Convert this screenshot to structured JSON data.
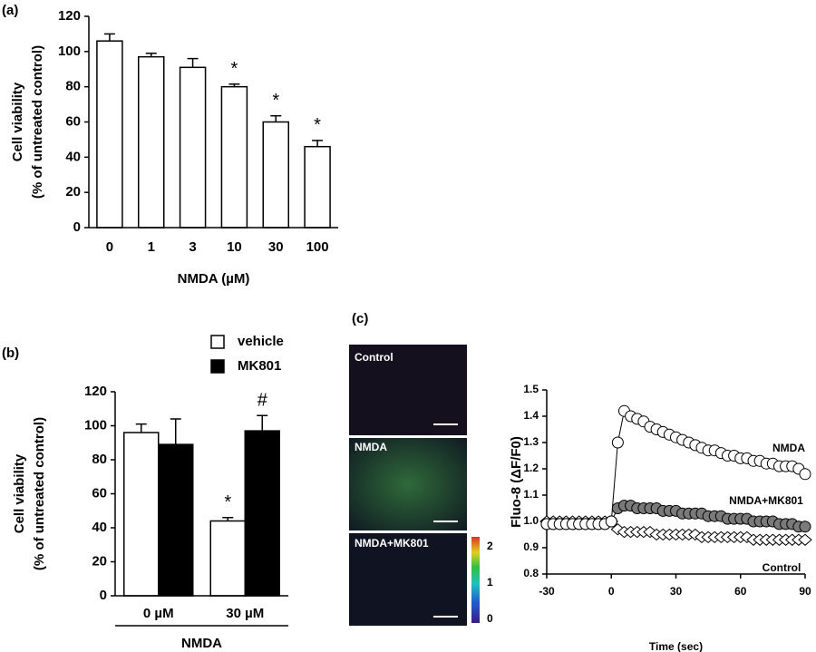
{
  "chart_data": [
    {
      "type": "bar",
      "panel_label": "(a)",
      "x_label": "NMDA (µM)",
      "y_label": [
        "Cell viability",
        "(% of untreated control)"
      ],
      "categories": [
        "0",
        "1",
        "3",
        "10",
        "30",
        "100"
      ],
      "values": [
        106,
        97,
        91,
        80,
        60,
        46
      ],
      "errors": [
        4,
        2,
        5,
        1.5,
        3.5,
        3.5
      ],
      "annotations": [
        null,
        null,
        null,
        "*",
        "*",
        "*"
      ],
      "color": "#ffffff",
      "ylim": [
        0,
        120
      ],
      "yticks": [
        0,
        20,
        40,
        60,
        80,
        100,
        120
      ]
    },
    {
      "type": "grouped_bar",
      "panel_label": "(b)",
      "x_label": "NMDA",
      "y_label": [
        "Cell viability",
        "(% of untreated control)"
      ],
      "categories": [
        "0 µM",
        "30 µM"
      ],
      "series": [
        {
          "name": "vehicle",
          "color": "#ffffff",
          "values": [
            96,
            44
          ],
          "errors": [
            5,
            2
          ],
          "annotations": [
            null,
            "*"
          ]
        },
        {
          "name": "MK801",
          "color": "#000000",
          "values": [
            89,
            97
          ],
          "errors": [
            15,
            9
          ],
          "annotations": [
            null,
            "#"
          ]
        }
      ],
      "ylim": [
        0,
        120
      ],
      "yticks": [
        0,
        20,
        40,
        60,
        80,
        100,
        120
      ]
    },
    {
      "type": "line",
      "x_label": "Time (sec)",
      "y_label": "Fluo-8 (ΔF/F0)",
      "x": [
        -30,
        -27,
        -24,
        -21,
        -18,
        -15,
        -12,
        -9,
        -6,
        -3,
        0,
        3,
        6,
        9,
        12,
        15,
        18,
        21,
        24,
        27,
        30,
        33,
        36,
        39,
        42,
        45,
        48,
        51,
        54,
        57,
        60,
        63,
        66,
        69,
        72,
        75,
        78,
        81,
        84,
        87,
        90
      ],
      "series": [
        {
          "name": "NMDA",
          "color": "#ffffff",
          "marker": "circle",
          "values": [
            0.99,
            0.99,
            0.99,
            0.99,
            0.99,
            0.99,
            0.99,
            0.99,
            0.99,
            0.99,
            1.0,
            1.3,
            1.42,
            1.4,
            1.39,
            1.38,
            1.36,
            1.35,
            1.34,
            1.33,
            1.32,
            1.31,
            1.3,
            1.29,
            1.28,
            1.27,
            1.27,
            1.26,
            1.25,
            1.25,
            1.24,
            1.24,
            1.23,
            1.23,
            1.22,
            1.22,
            1.21,
            1.21,
            1.21,
            1.2,
            1.18
          ]
        },
        {
          "name": "NMDA+MK801",
          "color": "#7a7a7a",
          "marker": "circle",
          "values": [
            0.99,
            0.99,
            0.99,
            0.99,
            0.99,
            0.99,
            0.99,
            0.99,
            0.99,
            0.99,
            1.0,
            1.05,
            1.06,
            1.06,
            1.05,
            1.05,
            1.05,
            1.05,
            1.04,
            1.04,
            1.04,
            1.03,
            1.03,
            1.03,
            1.03,
            1.02,
            1.02,
            1.02,
            1.01,
            1.01,
            1.01,
            1.01,
            1.0,
            1.0,
            1.0,
            1.0,
            0.99,
            0.99,
            0.99,
            0.98,
            0.98
          ]
        },
        {
          "name": "Control",
          "color": "#ffffff",
          "marker": "diamond",
          "values": [
            1.0,
            1.0,
            1.0,
            1.0,
            1.0,
            1.0,
            1.0,
            1.0,
            1.0,
            1.0,
            1.0,
            0.97,
            0.96,
            0.96,
            0.96,
            0.96,
            0.96,
            0.95,
            0.95,
            0.95,
            0.95,
            0.95,
            0.95,
            0.95,
            0.94,
            0.94,
            0.94,
            0.94,
            0.94,
            0.94,
            0.94,
            0.94,
            0.93,
            0.93,
            0.93,
            0.93,
            0.93,
            0.93,
            0.93,
            0.93,
            0.93
          ]
        }
      ],
      "xlim": [
        -30,
        90
      ],
      "xticks": [
        -30,
        0,
        30,
        60,
        90
      ],
      "ylim": [
        0.8,
        1.5
      ],
      "yticks": [
        0.8,
        0.9,
        {
          "value": 1,
          "label": "1.0"
        },
        1.1,
        1.2,
        1.3,
        1.4,
        1.5
      ]
    }
  ],
  "micrographs": {
    "panel_label": "(c)",
    "panels": [
      "Control",
      "NMDA",
      "NMDA+MK801"
    ],
    "colorbar_ticks": [
      0,
      1,
      2
    ]
  }
}
